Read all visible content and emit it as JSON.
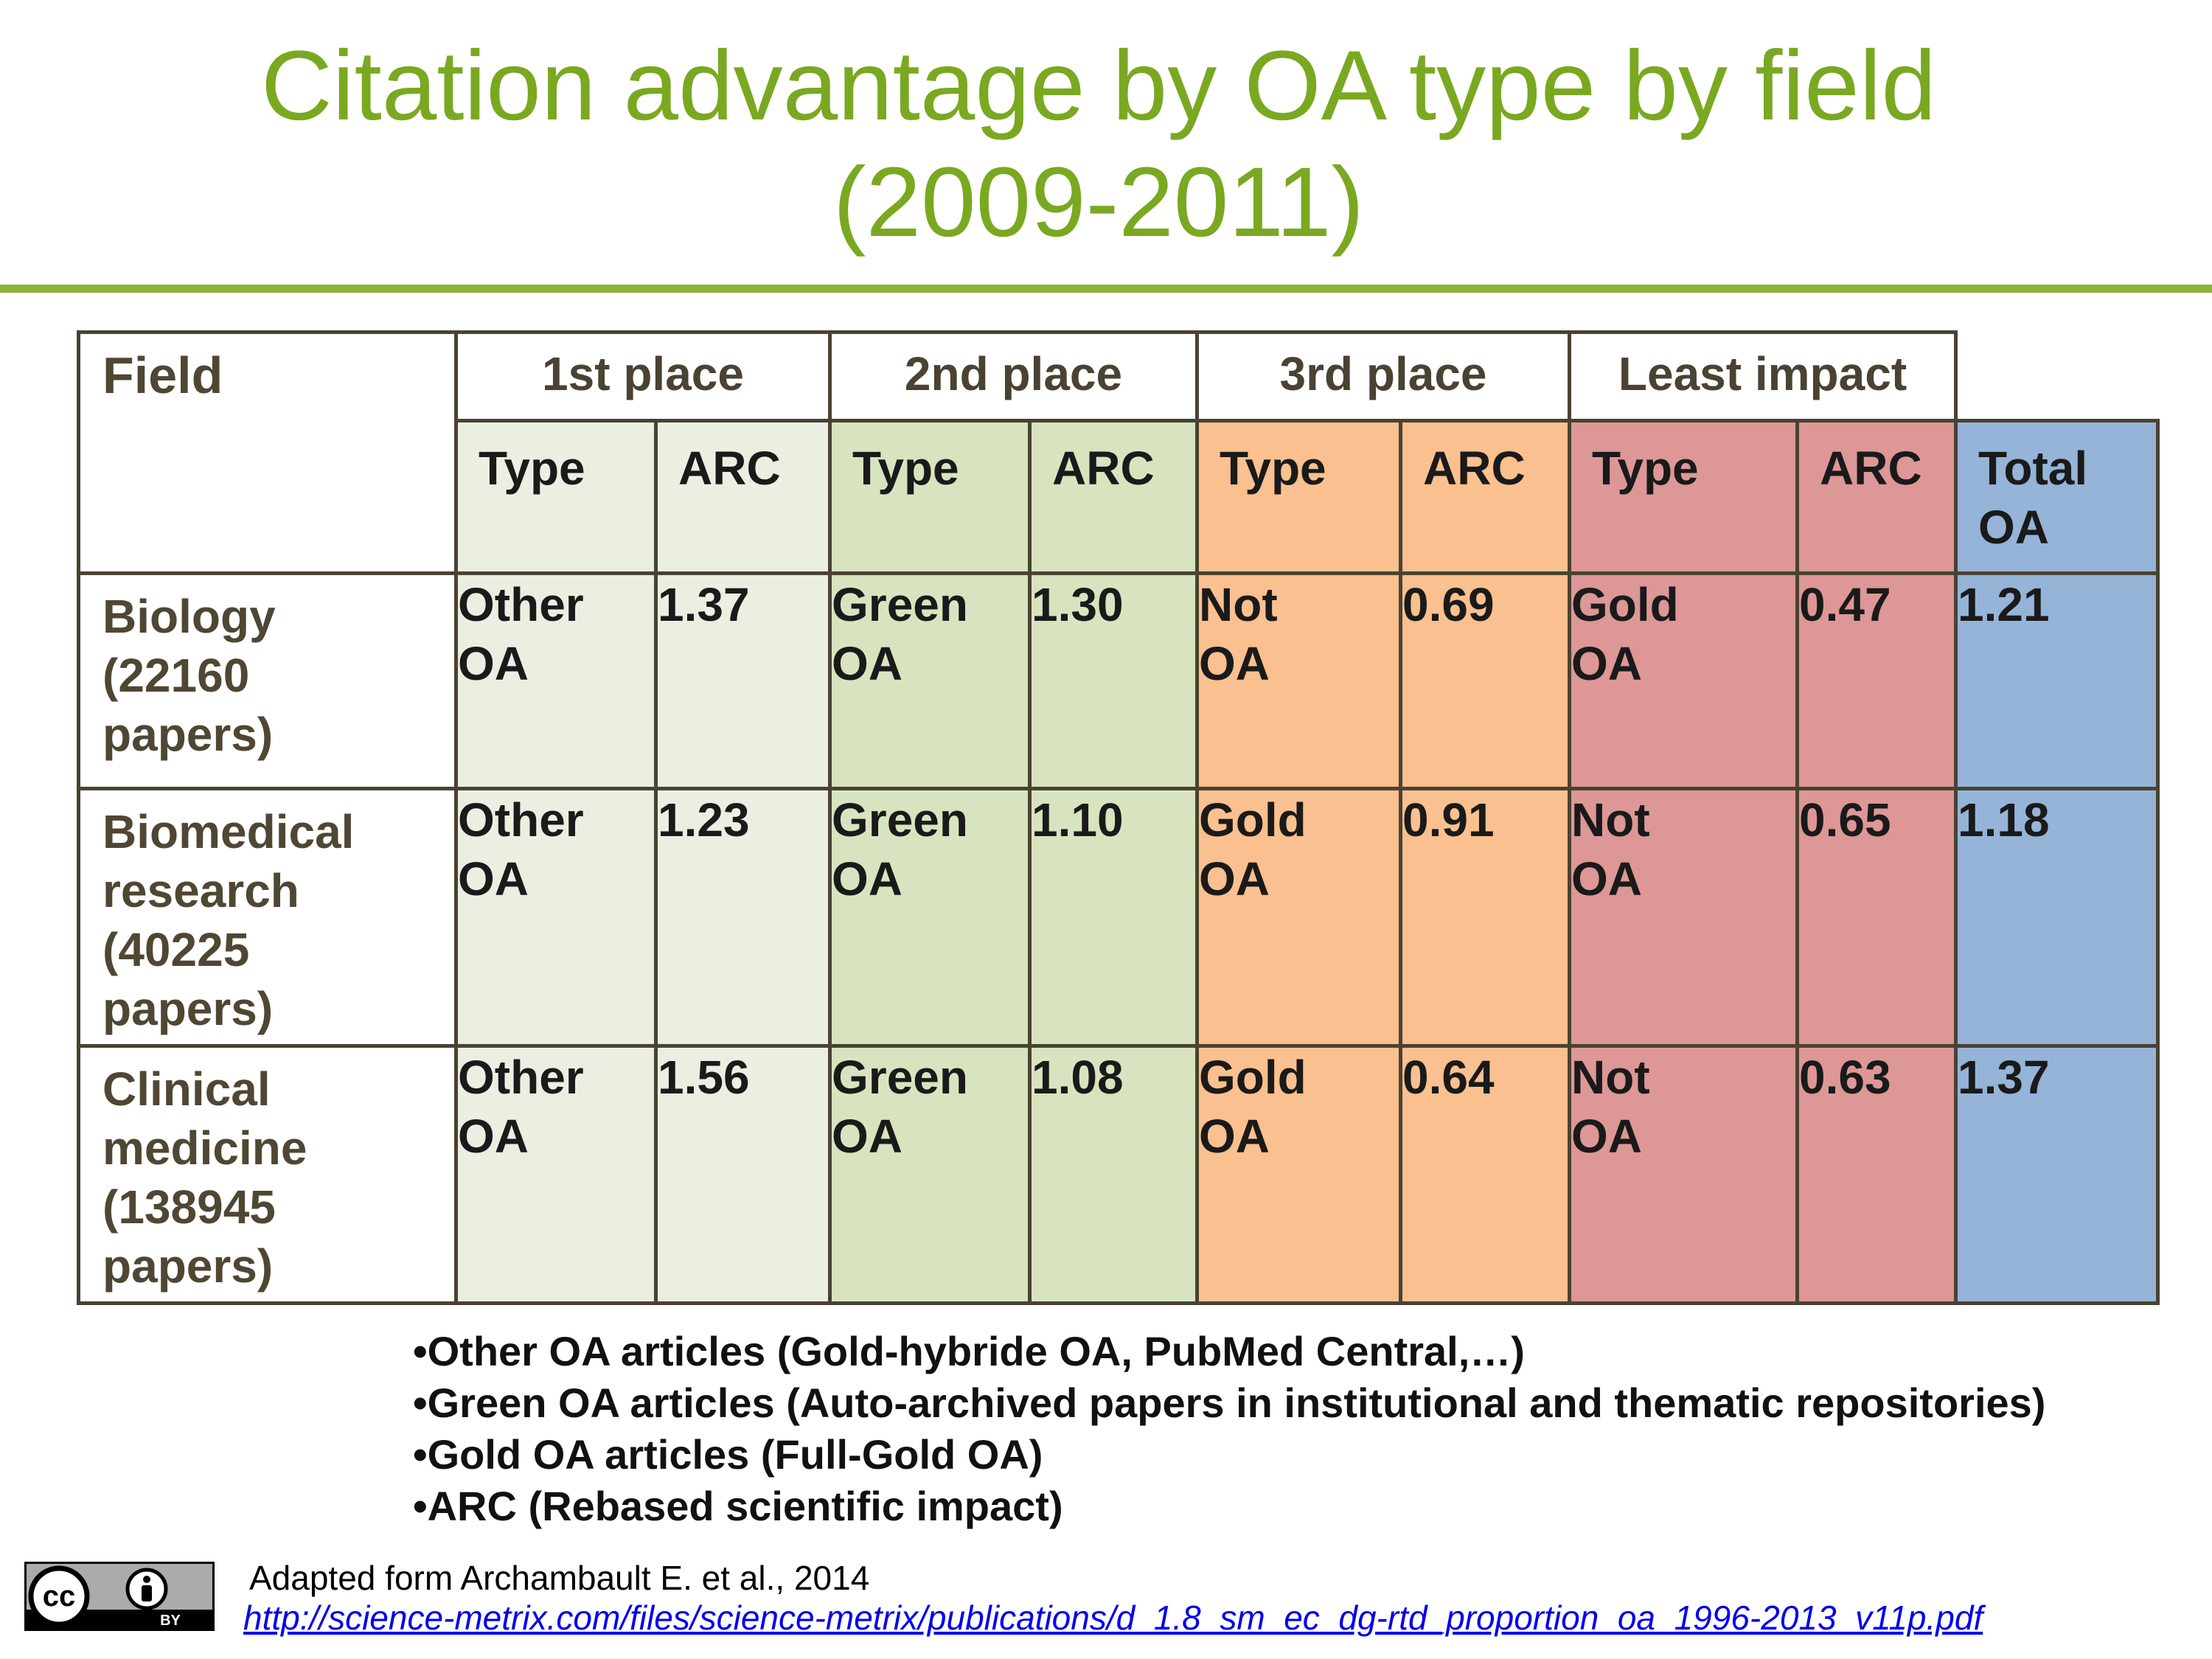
{
  "title": {
    "line1": "Citation advantage by OA type by field",
    "line2": "(2009-2011)"
  },
  "table": {
    "field_header": "Field",
    "groups": [
      "1st place",
      "2nd place",
      "3rd place",
      "Least impact"
    ],
    "sub": {
      "type": "Type",
      "arc": "ARC",
      "total_line1": "Total",
      "total_line2": "OA"
    },
    "rows": [
      {
        "field": [
          "Biology",
          "(22160",
          "papers)"
        ],
        "c1_type": [
          "Other",
          "OA"
        ],
        "c1_arc": "1.37",
        "c2_type": [
          "Green",
          "OA"
        ],
        "c2_arc": "1.30",
        "c3_type": [
          "Not",
          "OA"
        ],
        "c3_arc": "0.69",
        "c4_type": [
          "Gold",
          "OA"
        ],
        "c4_arc": "0.47",
        "total": "1.21"
      },
      {
        "field": [
          "Biomedical",
          "research",
          "(40225",
          "papers)"
        ],
        "c1_type": [
          "Other",
          "OA"
        ],
        "c1_arc": "1.23",
        "c2_type": [
          "Green",
          "OA"
        ],
        "c2_arc": "1.10",
        "c3_type": [
          "Gold",
          "OA"
        ],
        "c3_arc": "0.91",
        "c4_type": [
          "Not",
          "OA"
        ],
        "c4_arc": "0.65",
        "total": "1.18"
      },
      {
        "field": [
          "Clinical",
          "medicine",
          "(138945",
          "papers)"
        ],
        "c1_type": [
          "Other",
          "OA"
        ],
        "c1_arc": "1.56",
        "c2_type": [
          "Green",
          "OA"
        ],
        "c2_arc": "1.08",
        "c3_type": [
          "Gold",
          "OA"
        ],
        "c3_arc": "0.64",
        "c4_type": [
          "Not",
          "OA"
        ],
        "c4_arc": "0.63",
        "total": "1.37"
      }
    ]
  },
  "legend": [
    "Other OA articles (Gold-hybride OA, PubMed Central,…)",
    "Green OA articles (Auto-archived papers in institutional and thematic repositories)",
    "Gold OA articles (Full-Gold OA)",
    "ARC (Rebased scientific impact)"
  ],
  "footer": {
    "license_badge": {
      "icon": "cc-by-icon",
      "text_cc": "cc",
      "text_by": "BY"
    },
    "credit": "Adapted form Archambault E. et al., 2014",
    "url": "http://science-metrix.com/files/science-metrix/publications/d_1.8_sm_ec_dg-rtd_proportion_oa_1996-2013_v11p.pdf"
  },
  "colors": {
    "title": "#7aa821",
    "first_place": "#ebefe2",
    "second_place": "#d8e4bf",
    "third_place": "#fac08f",
    "least_impact": "#dd9796",
    "total_oa": "#95b4d8"
  }
}
